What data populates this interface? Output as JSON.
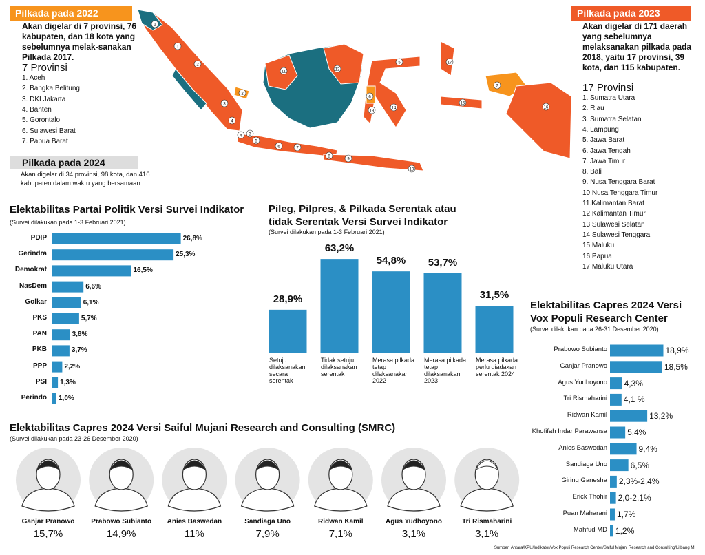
{
  "pilkada_2022": {
    "title": "Pilkada pada 2022",
    "description": "Akan digelar di 7 provinsi, 76 kabupaten, dan 18 kota yang sebelumnya melak-sanakan Pilkada 2017.",
    "count_label": "7 Provinsi",
    "items": [
      "1. Aceh",
      "2. Bangka Belitung",
      "3. DKI Jakarta",
      "4. Banten",
      "5. Gorontalo",
      "6. Sulawesi Barat",
      "7. Papua Barat"
    ]
  },
  "pilkada_2024": {
    "title": "Pilkada pada 2024",
    "description": "Akan digelar di 34 provinsi, 98 kota, dan 416 kabupaten dalam waktu yang bersamaan."
  },
  "pilkada_2023": {
    "title": "Pilkada pada 2023",
    "description": "Akan digelar di 171 daerah yang sebelumnya melaksanakan pilkada pada 2018, yaitu 17 provinsi, 39 kota, dan 115 kabupaten.",
    "count_label": "17 Provinsi",
    "items": [
      "1. Sumatra Utara",
      "2. Riau",
      "3. Sumatra Selatan",
      "4. Lampung",
      "5. Jawa Barat",
      "6. Jawa Tengah",
      "7. Jawa Timur",
      "8. Bali",
      "9. Nusa Tenggara Barat",
      "10.Nusa Tenggara Timur",
      "11.Kalimantan Barat",
      "12.Kalimantan Timur",
      "13.Sulawesi Selatan",
      "14.Sulawesi Tenggara",
      "15.Maluku",
      "16.Papua",
      "17.Maluku Utara"
    ]
  },
  "map": {
    "markers_2022": [
      "1",
      "2",
      "3",
      "4",
      "5",
      "6",
      "7"
    ],
    "markers_2023": [
      "1",
      "2",
      "3",
      "4",
      "5",
      "6",
      "7",
      "8",
      "9",
      "10",
      "11",
      "12",
      "13",
      "14",
      "15",
      "16",
      "17"
    ]
  },
  "chart_data": [
    {
      "type": "hbar",
      "title": "Elektabilitas Partai Politik Versi Survei Indikator",
      "subtitle": "(Survei dilakukan pada 1-3 Februari 2021)",
      "color": "#2b8fc5",
      "categories": [
        "PDIP",
        "Gerindra",
        "Demokrat",
        "NasDem",
        "Golkar",
        "PKS",
        "PAN",
        "PKB",
        "PPP",
        "PSI",
        "Perindo"
      ],
      "values": [
        26.8,
        25.3,
        16.5,
        6.6,
        6.1,
        5.7,
        3.8,
        3.7,
        2.2,
        1.3,
        1.0
      ],
      "value_labels": [
        "26,8%",
        "25,3%",
        "16,5%",
        "6,6%",
        "6,1%",
        "5,7%",
        "3,8%",
        "3,7%",
        "2,2%",
        "1,3%",
        "1,0%"
      ]
    },
    {
      "type": "column",
      "title": "Pileg, Pilpres, & Pilkada Serentak atau tidak Serentak Versi Survei Indikator",
      "subtitle": "(Survei dilakukan pada 1-3 Februari 2021)",
      "color": "#2b8fc5",
      "categories": [
        "Setuju dilaksanakan secara serentak",
        "Tidak setuju dilaksanakan serentak",
        "Merasa pilkada tetap dilaksanakan 2022",
        "Merasa pilkada tetap dilaksanakan 2023",
        "Merasa pilkada perlu diadakan serentak 2024"
      ],
      "values": [
        28.9,
        63.2,
        54.8,
        53.7,
        31.5
      ],
      "value_labels": [
        "28,9%",
        "63,2%",
        "54,8%",
        "53,7%",
        "31,5%"
      ]
    },
    {
      "type": "hbar",
      "title": "Elektabilitas Capres 2024 Versi Vox Populi Research Center",
      "subtitle": "(Survei dilakukan pada 26-31 Desember 2020)",
      "color": "#2b8fc5",
      "categories": [
        "Prabowo Subianto",
        "Ganjar Pranowo",
        "Agus Yudhoyono",
        "Tri Rismaharini",
        "Ridwan Kamil",
        "Khofifah Indar Parawansa",
        "Anies Baswedan",
        "Sandiaga Uno",
        "Giring Ganesha",
        "Erick Thohir",
        "Puan Maharani",
        "Mahfud MD"
      ],
      "values": [
        18.9,
        18.5,
        4.3,
        4.1,
        13.2,
        5.4,
        9.4,
        6.5,
        2.4,
        2.1,
        1.7,
        1.2
      ],
      "value_labels": [
        "18,9%",
        "18,5%",
        "4,3%",
        "4,1 %",
        "13,2%",
        "5,4%",
        "9,4%",
        "6,5%",
        "2,3%-2,4%",
        "2,0-2,1%",
        "1,7%",
        "1,2%"
      ]
    }
  ],
  "smrc": {
    "title": "Elektabilitas Capres 2024 Versi Saiful Mujani Research and Consulting (SMRC)",
    "subtitle": "(Survei dilakukan pada 23-26 Desember 2020)",
    "names": [
      "Ganjar Pranowo",
      "Prabowo Subianto",
      "Anies Baswedan",
      "Sandiaga Uno",
      "Ridwan Kamil",
      "Agus Yudhoyono",
      "Tri Rismaharini"
    ],
    "results": [
      "15,7%",
      "14,9%",
      "11%",
      "7,9%",
      "7,1%",
      "3,1%",
      "3,1%"
    ]
  },
  "source": "Sumber: Antara/KPU/Indikator/Vox Populi Research Center/Saiful Mujani Research and Consulting/Litbang MI"
}
